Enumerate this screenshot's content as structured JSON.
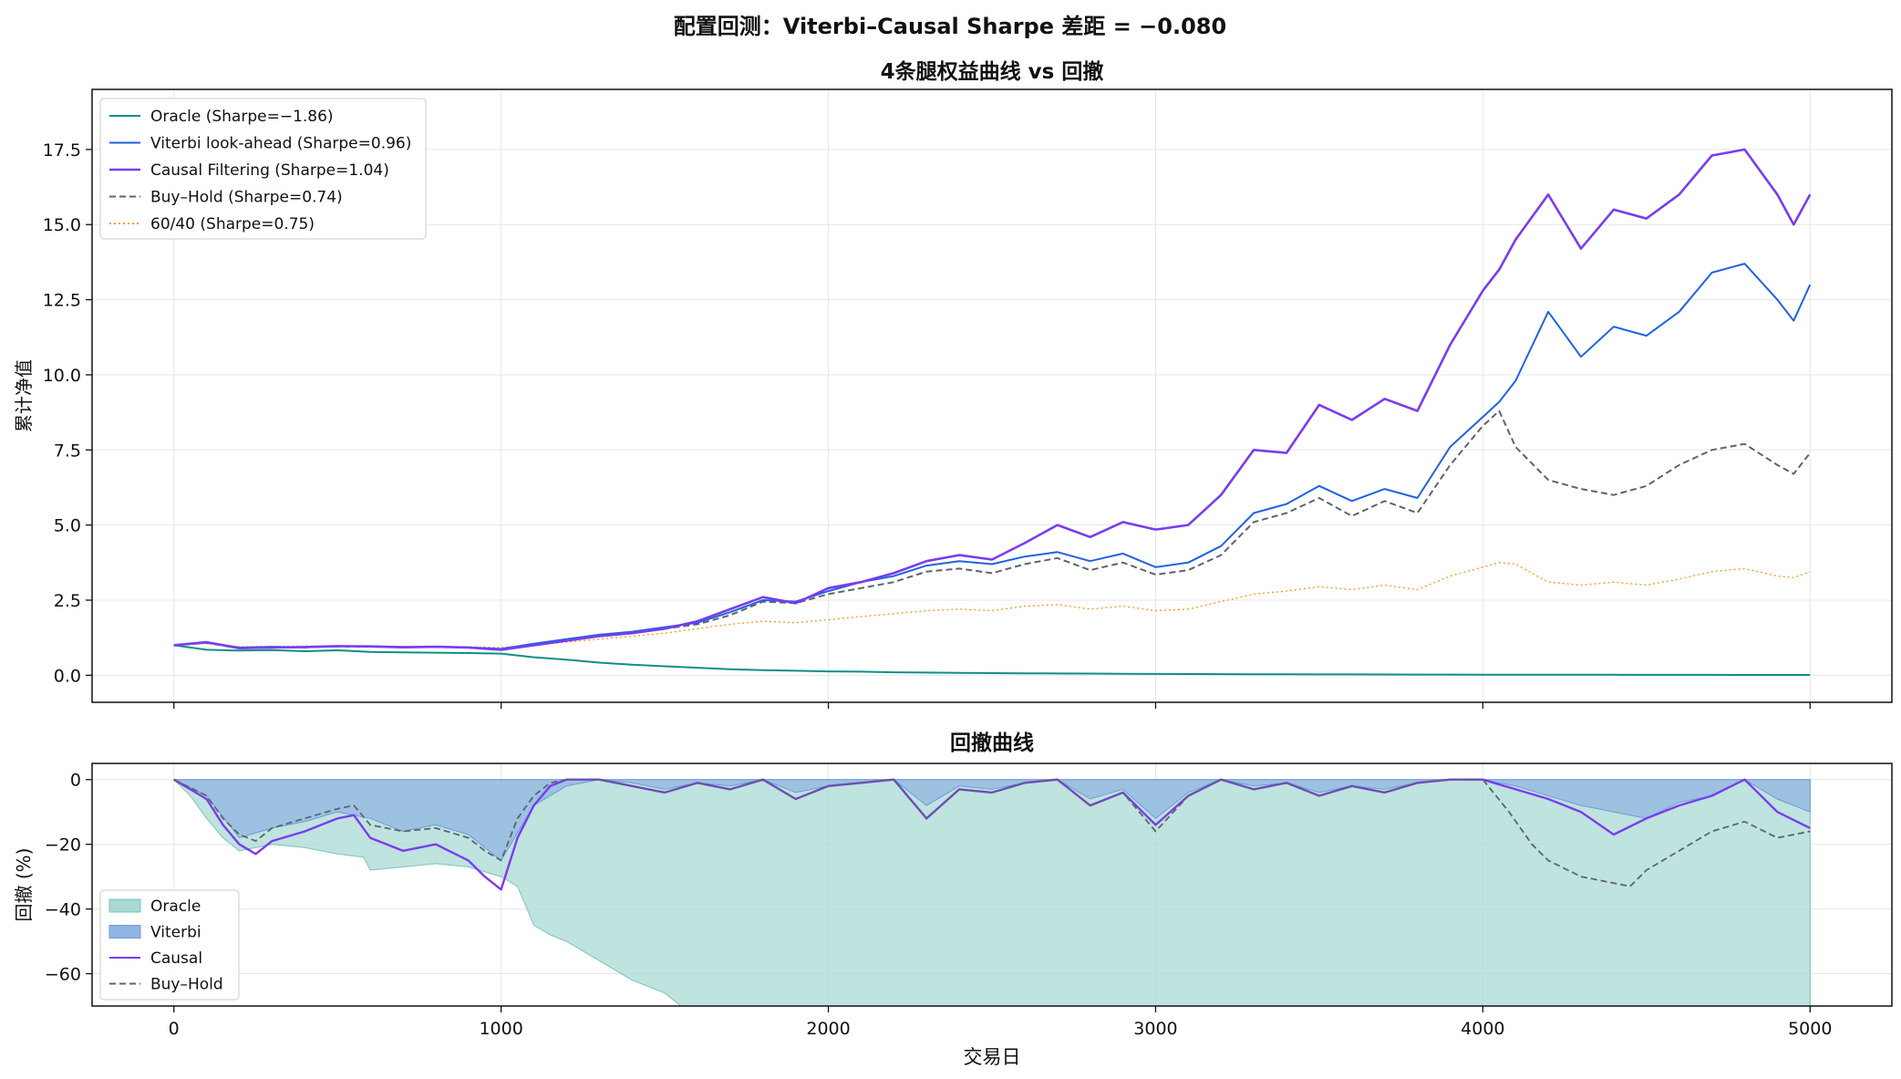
{
  "suptitle": "配置回测：Viterbi–Causal Sharpe 差距 = −0.080",
  "colors": {
    "oracle": "#0f8f86",
    "viterbi": "#1f63e0",
    "causal": "#7a3cf0",
    "buyhold": "#5d6470",
    "sixty_forty": "#f0a020",
    "oracle_fill": "#a9d9d3",
    "viterbi_fill": "#90b5e2"
  },
  "chart_data": [
    {
      "type": "line",
      "title": "4条腿权益曲线 vs 回撤",
      "xlabel": "",
      "ylabel": "累计净值",
      "xlim": [
        -250,
        5250
      ],
      "ylim": [
        -0.9,
        19.5
      ],
      "yticks": [
        0.0,
        2.5,
        5.0,
        7.5,
        10.0,
        12.5,
        15.0,
        17.5
      ],
      "ytick_labels": [
        "0.0",
        "2.5",
        "5.0",
        "7.5",
        "10.0",
        "12.5",
        "15.0",
        "17.5"
      ],
      "grid": true,
      "legend_position": "upper-left",
      "x": [
        0,
        100,
        200,
        300,
        400,
        500,
        600,
        700,
        800,
        900,
        1000,
        1100,
        1200,
        1300,
        1400,
        1500,
        1600,
        1700,
        1800,
        1900,
        2000,
        2100,
        2200,
        2300,
        2400,
        2500,
        2600,
        2700,
        2800,
        2900,
        3000,
        3100,
        3200,
        3300,
        3400,
        3500,
        3600,
        3700,
        3800,
        3900,
        4000,
        4050,
        4100,
        4200,
        4300,
        4400,
        4500,
        4600,
        4700,
        4800,
        4900,
        4950,
        5000
      ],
      "series": [
        {
          "name": "Oracle (Sharpe=−1.86)",
          "key": "oracle",
          "style": "solid",
          "values": [
            1.0,
            0.85,
            0.82,
            0.84,
            0.8,
            0.83,
            0.78,
            0.76,
            0.75,
            0.74,
            0.72,
            0.6,
            0.52,
            0.42,
            0.35,
            0.3,
            0.25,
            0.2,
            0.17,
            0.15,
            0.13,
            0.12,
            0.1,
            0.09,
            0.08,
            0.07,
            0.065,
            0.06,
            0.055,
            0.05,
            0.045,
            0.04,
            0.038,
            0.035,
            0.033,
            0.03,
            0.028,
            0.026,
            0.024,
            0.022,
            0.02,
            0.02,
            0.019,
            0.018,
            0.017,
            0.016,
            0.015,
            0.014,
            0.013,
            0.012,
            0.011,
            0.011,
            0.01
          ]
        },
        {
          "name": "Viterbi look-ahead (Sharpe=0.96)",
          "key": "viterbi",
          "style": "solid",
          "values": [
            1.0,
            1.1,
            0.92,
            0.95,
            0.93,
            0.97,
            0.96,
            0.94,
            0.95,
            0.93,
            0.88,
            1.05,
            1.2,
            1.35,
            1.45,
            1.6,
            1.75,
            2.1,
            2.5,
            2.45,
            2.8,
            3.1,
            3.3,
            3.65,
            3.8,
            3.7,
            3.95,
            4.1,
            3.8,
            4.05,
            3.6,
            3.75,
            4.3,
            5.4,
            5.7,
            6.3,
            5.8,
            6.2,
            5.9,
            7.6,
            8.6,
            9.1,
            9.8,
            12.1,
            10.6,
            11.6,
            11.3,
            12.1,
            13.4,
            13.7,
            12.5,
            11.8,
            13.0
          ]
        },
        {
          "name": "Causal Filtering (Sharpe=1.04)",
          "key": "causal",
          "style": "solid",
          "values": [
            1.0,
            1.1,
            0.9,
            0.92,
            0.94,
            0.97,
            0.96,
            0.93,
            0.95,
            0.92,
            0.85,
            1.0,
            1.15,
            1.3,
            1.4,
            1.55,
            1.8,
            2.2,
            2.6,
            2.4,
            2.9,
            3.1,
            3.4,
            3.8,
            4.0,
            3.85,
            4.4,
            5.0,
            4.6,
            5.1,
            4.85,
            5.0,
            6.0,
            7.5,
            7.4,
            9.0,
            8.5,
            9.2,
            8.8,
            11.0,
            12.8,
            13.5,
            14.5,
            16.0,
            14.2,
            15.5,
            15.2,
            16.0,
            17.3,
            17.5,
            16.0,
            15.0,
            16.0
          ]
        },
        {
          "name": "Buy–Hold (Sharpe=0.74)",
          "key": "buyhold",
          "style": "dashed",
          "values": [
            1.0,
            1.08,
            0.9,
            0.92,
            0.93,
            0.96,
            0.95,
            0.93,
            0.94,
            0.92,
            0.86,
            1.0,
            1.15,
            1.3,
            1.4,
            1.55,
            1.7,
            2.0,
            2.45,
            2.4,
            2.7,
            2.9,
            3.1,
            3.45,
            3.55,
            3.4,
            3.7,
            3.9,
            3.5,
            3.75,
            3.35,
            3.5,
            4.0,
            5.1,
            5.4,
            5.9,
            5.3,
            5.8,
            5.4,
            7.0,
            8.3,
            8.8,
            7.6,
            6.5,
            6.2,
            6.0,
            6.3,
            7.0,
            7.5,
            7.7,
            7.0,
            6.7,
            7.4
          ]
        },
        {
          "name": "60/40 (Sharpe=0.75)",
          "key": "sixty_forty",
          "style": "dotted",
          "values": [
            1.0,
            1.05,
            0.95,
            0.96,
            0.97,
            0.98,
            0.97,
            0.96,
            0.96,
            0.95,
            0.92,
            1.0,
            1.1,
            1.2,
            1.3,
            1.4,
            1.55,
            1.7,
            1.8,
            1.75,
            1.85,
            1.95,
            2.05,
            2.15,
            2.2,
            2.15,
            2.3,
            2.35,
            2.2,
            2.3,
            2.15,
            2.2,
            2.45,
            2.7,
            2.8,
            2.95,
            2.85,
            3.0,
            2.85,
            3.3,
            3.6,
            3.75,
            3.7,
            3.1,
            3.0,
            3.1,
            3.0,
            3.2,
            3.45,
            3.55,
            3.3,
            3.25,
            3.45
          ]
        }
      ]
    },
    {
      "type": "area",
      "title": "回撤曲线",
      "xlabel": "交易日",
      "ylabel": "回撤 (%)",
      "xlim": [
        -250,
        5250
      ],
      "ylim": [
        -70,
        5
      ],
      "yticks": [
        0,
        -20,
        -40,
        -60
      ],
      "ytick_labels": [
        "0",
        "−20",
        "−40",
        "−60"
      ],
      "xticks": [
        0,
        1000,
        2000,
        3000,
        4000,
        5000
      ],
      "xtick_labels": [
        "0",
        "1000",
        "2000",
        "3000",
        "4000",
        "5000"
      ],
      "grid": true,
      "legend_position": "lower-left",
      "series": [
        {
          "name": "Oracle",
          "key": "oracle",
          "kind": "fill",
          "x": [
            0,
            50,
            100,
            150,
            200,
            300,
            400,
            500,
            580,
            600,
            700,
            800,
            900,
            1000,
            1050,
            1100,
            1150,
            1200,
            1300,
            1400,
            1500,
            1550,
            1600,
            5000
          ],
          "values": [
            0,
            -5,
            -12,
            -18,
            -22,
            -20,
            -21,
            -23,
            -24,
            -28,
            -27,
            -26,
            -27,
            -30,
            -33,
            -45,
            -48,
            -50,
            -56,
            -62,
            -66,
            -70,
            -70,
            -70
          ]
        },
        {
          "name": "Viterbi",
          "key": "viterbi",
          "kind": "fill",
          "x": [
            0,
            100,
            200,
            300,
            400,
            500,
            600,
            700,
            800,
            900,
            1000,
            1100,
            1200,
            1300,
            1400,
            1500,
            1600,
            1700,
            1800,
            1900,
            2000,
            2100,
            2200,
            2300,
            2400,
            2500,
            2600,
            2700,
            2800,
            2900,
            3000,
            3100,
            3200,
            3300,
            3400,
            3500,
            3600,
            3700,
            3800,
            3900,
            4000,
            4100,
            4200,
            4300,
            4400,
            4500,
            4600,
            4700,
            4800,
            4900,
            5000
          ],
          "values": [
            0,
            -5,
            -18,
            -15,
            -13,
            -10,
            -12,
            -16,
            -14,
            -17,
            -25,
            -8,
            -2,
            0,
            -1,
            -3,
            -1,
            -2,
            0,
            -4,
            -2,
            -1,
            0,
            -8,
            -2,
            -3,
            -1,
            0,
            -6,
            -3,
            -12,
            -4,
            0,
            -2,
            -1,
            -4,
            -2,
            -3,
            -1,
            0,
            0,
            -2,
            -5,
            -8,
            -10,
            -12,
            -7,
            -5,
            0,
            -6,
            -10
          ]
        },
        {
          "name": "Causal",
          "key": "causal",
          "kind": "line",
          "x": [
            0,
            100,
            150,
            200,
            250,
            300,
            400,
            500,
            550,
            600,
            700,
            800,
            900,
            950,
            1000,
            1050,
            1100,
            1150,
            1200,
            1300,
            1400,
            1500,
            1600,
            1700,
            1800,
            1900,
            2000,
            2100,
            2200,
            2300,
            2400,
            2500,
            2600,
            2700,
            2800,
            2900,
            3000,
            3100,
            3200,
            3300,
            3400,
            3500,
            3600,
            3700,
            3800,
            3900,
            4000,
            4100,
            4200,
            4300,
            4400,
            4500,
            4600,
            4700,
            4800,
            4900,
            5000
          ],
          "values": [
            0,
            -6,
            -14,
            -20,
            -23,
            -19,
            -16,
            -12,
            -11,
            -18,
            -22,
            -20,
            -25,
            -30,
            -34,
            -18,
            -8,
            -2,
            0,
            0,
            -2,
            -4,
            -1,
            -3,
            0,
            -6,
            -2,
            -1,
            0,
            -12,
            -3,
            -4,
            -1,
            0,
            -8,
            -4,
            -14,
            -5,
            0,
            -3,
            -1,
            -5,
            -2,
            -4,
            -1,
            0,
            0,
            -3,
            -6,
            -10,
            -17,
            -12,
            -8,
            -5,
            0,
            -10,
            -15
          ]
        },
        {
          "name": "Buy–Hold",
          "key": "buyhold",
          "kind": "dashed",
          "x": [
            0,
            100,
            150,
            200,
            250,
            300,
            400,
            500,
            550,
            600,
            700,
            800,
            900,
            950,
            1000,
            1050,
            1100,
            1150,
            1200,
            1300,
            1400,
            1500,
            1600,
            1700,
            1800,
            1900,
            2000,
            2100,
            2200,
            2300,
            2400,
            2500,
            2600,
            2700,
            2800,
            2900,
            3000,
            3100,
            3200,
            3300,
            3400,
            3500,
            3600,
            3700,
            3800,
            3900,
            4000,
            4080,
            4150,
            4200,
            4300,
            4400,
            4450,
            4500,
            4600,
            4700,
            4800,
            4900,
            5000
          ],
          "values": [
            0,
            -5,
            -12,
            -17,
            -19,
            -15,
            -12,
            -9,
            -8,
            -14,
            -16,
            -15,
            -18,
            -22,
            -25,
            -12,
            -5,
            -1,
            0,
            0,
            -2,
            -4,
            -1,
            -3,
            0,
            -6,
            -2,
            -1,
            0,
            -12,
            -3,
            -4,
            -1,
            0,
            -8,
            -4,
            -16,
            -5,
            0,
            -3,
            -1,
            -5,
            -2,
            -4,
            -1,
            0,
            0,
            -10,
            -20,
            -25,
            -30,
            -32,
            -33,
            -28,
            -22,
            -16,
            -13,
            -18,
            -16
          ]
        }
      ]
    }
  ]
}
